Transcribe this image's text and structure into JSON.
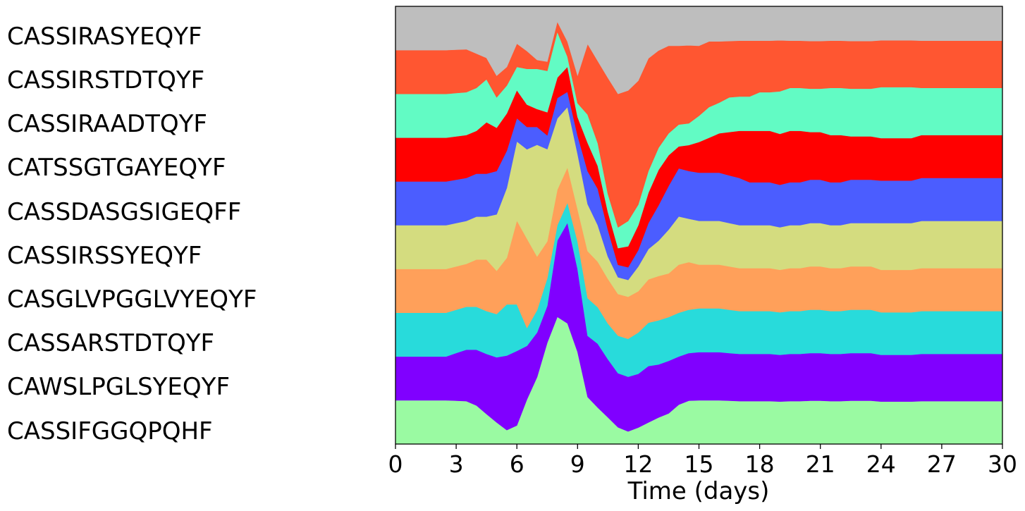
{
  "chart_data": {
    "type": "area",
    "stacked": true,
    "normalized": true,
    "xlabel": "Time (days)",
    "ylabel": "",
    "xlim": [
      0,
      30
    ],
    "xticks": [
      "0",
      "3",
      "6",
      "9",
      "12",
      "15",
      "18",
      "21",
      "24",
      "27",
      "30"
    ],
    "x": [
      0,
      0.5,
      1,
      1.5,
      2,
      2.5,
      3,
      3.5,
      4,
      4.5,
      5,
      5.5,
      6,
      6.5,
      7,
      7.5,
      8,
      8.5,
      9,
      9.5,
      10,
      10.5,
      11,
      11.5,
      12,
      12.5,
      13,
      13.5,
      14,
      14.5,
      15,
      15.5,
      16,
      16.5,
      17,
      17.5,
      18,
      18.5,
      19,
      19.5,
      20,
      20.5,
      21,
      21.5,
      22,
      22.5,
      23,
      23.5,
      24,
      24.5,
      25,
      25.5,
      26,
      26.5,
      27,
      27.5,
      28,
      28.5,
      29,
      29.5,
      30
    ],
    "series": [
      {
        "name": "CASSIFGGQPQHF",
        "color": "#9afaa2",
        "values": [
          0.1,
          0.1,
          0.1,
          0.1,
          0.1,
          0.1,
          0.1,
          0.1,
          0.09,
          0.07,
          0.05,
          0.03,
          0.04,
          0.1,
          0.15,
          0.22,
          0.25,
          0.24,
          0.2,
          0.1,
          0.08,
          0.06,
          0.04,
          0.03,
          0.04,
          0.05,
          0.06,
          0.07,
          0.09,
          0.1,
          0.1,
          0.1,
          0.1,
          0.1,
          0.1,
          0.1,
          0.1,
          0.1,
          0.1,
          0.1,
          0.1,
          0.1,
          0.1,
          0.1,
          0.1,
          0.1,
          0.1,
          0.1,
          0.1,
          0.1,
          0.1,
          0.1,
          0.1,
          0.1,
          0.1,
          0.1,
          0.1,
          0.1,
          0.1,
          0.1,
          0.1
        ]
      },
      {
        "name": "CAWSLPGLSYEQYF",
        "color": "#8000ff",
        "values": [
          0.1,
          0.1,
          0.1,
          0.1,
          0.1,
          0.1,
          0.11,
          0.12,
          0.13,
          0.14,
          0.15,
          0.16,
          0.16,
          0.12,
          0.1,
          0.08,
          0.15,
          0.2,
          0.18,
          0.13,
          0.14,
          0.13,
          0.13,
          0.13,
          0.13,
          0.13,
          0.12,
          0.12,
          0.11,
          0.11,
          0.11,
          0.11,
          0.11,
          0.11,
          0.11,
          0.11,
          0.11,
          0.11,
          0.11,
          0.11,
          0.11,
          0.11,
          0.11,
          0.11,
          0.11,
          0.11,
          0.11,
          0.11,
          0.11,
          0.11,
          0.11,
          0.11,
          0.11,
          0.11,
          0.11,
          0.11,
          0.11,
          0.11,
          0.11,
          0.11,
          0.11
        ]
      },
      {
        "name": "CASSARSTDTQYF",
        "color": "#28dbdb",
        "values": [
          0.1,
          0.1,
          0.1,
          0.1,
          0.1,
          0.1,
          0.1,
          0.1,
          0.1,
          0.1,
          0.1,
          0.11,
          0.1,
          0.04,
          0.05,
          0.06,
          0.03,
          0.04,
          0.06,
          0.08,
          0.08,
          0.08,
          0.09,
          0.09,
          0.1,
          0.1,
          0.1,
          0.1,
          0.1,
          0.1,
          0.1,
          0.1,
          0.1,
          0.1,
          0.1,
          0.1,
          0.1,
          0.1,
          0.1,
          0.1,
          0.1,
          0.1,
          0.1,
          0.1,
          0.1,
          0.1,
          0.1,
          0.1,
          0.1,
          0.1,
          0.1,
          0.1,
          0.1,
          0.1,
          0.1,
          0.1,
          0.1,
          0.1,
          0.1,
          0.1,
          0.1
        ]
      },
      {
        "name": "CASGLVPGGLVYEQYF",
        "color": "#ffa05a",
        "values": [
          0.1,
          0.1,
          0.1,
          0.1,
          0.1,
          0.1,
          0.1,
          0.1,
          0.11,
          0.12,
          0.1,
          0.1,
          0.18,
          0.2,
          0.12,
          0.08,
          0.07,
          0.07,
          0.07,
          0.1,
          0.1,
          0.1,
          0.1,
          0.1,
          0.1,
          0.1,
          0.1,
          0.1,
          0.11,
          0.11,
          0.1,
          0.1,
          0.1,
          0.1,
          0.1,
          0.1,
          0.1,
          0.1,
          0.1,
          0.1,
          0.1,
          0.1,
          0.1,
          0.1,
          0.1,
          0.1,
          0.1,
          0.1,
          0.1,
          0.1,
          0.1,
          0.1,
          0.1,
          0.1,
          0.1,
          0.1,
          0.1,
          0.1,
          0.1,
          0.1,
          0.1
        ]
      },
      {
        "name": "CASSIRSSYEQYF",
        "color": "#d4dc7f",
        "values": [
          0.1,
          0.1,
          0.1,
          0.1,
          0.1,
          0.1,
          0.1,
          0.1,
          0.1,
          0.1,
          0.13,
          0.15,
          0.17,
          0.2,
          0.25,
          0.2,
          0.14,
          0.12,
          0.12,
          0.1,
          0.08,
          0.05,
          0.04,
          0.04,
          0.06,
          0.07,
          0.08,
          0.1,
          0.11,
          0.1,
          0.1,
          0.1,
          0.1,
          0.1,
          0.1,
          0.1,
          0.1,
          0.1,
          0.1,
          0.1,
          0.1,
          0.1,
          0.1,
          0.1,
          0.1,
          0.1,
          0.1,
          0.1,
          0.11,
          0.11,
          0.11,
          0.11,
          0.11,
          0.11,
          0.11,
          0.11,
          0.11,
          0.11,
          0.11,
          0.11,
          0.11
        ]
      },
      {
        "name": "CASSDASGSIGEQFF",
        "color": "#4b5dff",
        "values": [
          0.1,
          0.1,
          0.1,
          0.1,
          0.1,
          0.1,
          0.1,
          0.1,
          0.1,
          0.1,
          0.1,
          0.08,
          0.05,
          0.05,
          0.04,
          0.03,
          0.04,
          0.03,
          0.04,
          0.07,
          0.08,
          0.06,
          0.03,
          0.03,
          0.04,
          0.06,
          0.08,
          0.1,
          0.11,
          0.11,
          0.11,
          0.11,
          0.11,
          0.11,
          0.11,
          0.1,
          0.1,
          0.1,
          0.1,
          0.1,
          0.1,
          0.1,
          0.1,
          0.1,
          0.1,
          0.1,
          0.1,
          0.1,
          0.1,
          0.1,
          0.1,
          0.1,
          0.1,
          0.1,
          0.1,
          0.1,
          0.1,
          0.1,
          0.1,
          0.1,
          0.1
        ]
      },
      {
        "name": "CATSSGTGAYEQYF",
        "color": "#ff0000",
        "values": [
          0.1,
          0.1,
          0.1,
          0.1,
          0.1,
          0.1,
          0.1,
          0.1,
          0.1,
          0.12,
          0.1,
          0.08,
          0.06,
          0.05,
          0.04,
          0.05,
          0.04,
          0.05,
          0.04,
          0.06,
          0.05,
          0.04,
          0.04,
          0.05,
          0.06,
          0.07,
          0.08,
          0.07,
          0.05,
          0.06,
          0.07,
          0.08,
          0.09,
          0.1,
          0.11,
          0.12,
          0.12,
          0.12,
          0.12,
          0.12,
          0.12,
          0.11,
          0.11,
          0.11,
          0.11,
          0.1,
          0.1,
          0.1,
          0.1,
          0.1,
          0.1,
          0.1,
          0.1,
          0.1,
          0.1,
          0.1,
          0.1,
          0.1,
          0.1,
          0.1,
          0.1
        ]
      },
      {
        "name": "CASSIRAADTQYF",
        "color": "#62fbc4",
        "values": [
          0.1,
          0.1,
          0.1,
          0.1,
          0.1,
          0.1,
          0.1,
          0.1,
          0.1,
          0.1,
          0.07,
          0.06,
          0.05,
          0.08,
          0.09,
          0.09,
          0.09,
          0.02,
          0.03,
          0.06,
          0.05,
          0.04,
          0.05,
          0.06,
          0.05,
          0.05,
          0.05,
          0.05,
          0.05,
          0.05,
          0.06,
          0.07,
          0.07,
          0.08,
          0.08,
          0.08,
          0.09,
          0.09,
          0.1,
          0.1,
          0.1,
          0.1,
          0.1,
          0.11,
          0.11,
          0.11,
          0.11,
          0.11,
          0.12,
          0.12,
          0.12,
          0.12,
          0.11,
          0.11,
          0.11,
          0.11,
          0.11,
          0.11,
          0.11,
          0.11,
          0.11
        ]
      },
      {
        "name": "CASSIRSTDTQYF",
        "color": "#ff5631",
        "values": [
          0.1,
          0.1,
          0.1,
          0.1,
          0.1,
          0.1,
          0.1,
          0.1,
          0.08,
          0.05,
          0.05,
          0.04,
          0.05,
          0.04,
          0.02,
          0.02,
          0.02,
          0.03,
          0.06,
          0.15,
          0.18,
          0.26,
          0.32,
          0.31,
          0.3,
          0.26,
          0.22,
          0.2,
          0.18,
          0.18,
          0.16,
          0.15,
          0.14,
          0.13,
          0.13,
          0.13,
          0.12,
          0.12,
          0.12,
          0.11,
          0.11,
          0.11,
          0.11,
          0.11,
          0.11,
          0.11,
          0.11,
          0.11,
          0.11,
          0.11,
          0.11,
          0.11,
          0.11,
          0.11,
          0.11,
          0.11,
          0.11,
          0.11,
          0.11,
          0.11,
          0.11
        ]
      },
      {
        "name": "CASSIRASYEQYF",
        "color": "#bebebe",
        "values": [
          0.1,
          0.1,
          0.1,
          0.1,
          0.1,
          0.1,
          0.1,
          0.1,
          0.11,
          0.12,
          0.16,
          0.13,
          0.08,
          0.1,
          0.12,
          0.12,
          0.03,
          0.07,
          0.15,
          0.08,
          0.12,
          0.16,
          0.21,
          0.2,
          0.18,
          0.12,
          0.1,
          0.09,
          0.09,
          0.09,
          0.09,
          0.08,
          0.08,
          0.08,
          0.08,
          0.08,
          0.08,
          0.08,
          0.08,
          0.08,
          0.08,
          0.08,
          0.08,
          0.08,
          0.08,
          0.08,
          0.08,
          0.08,
          0.08,
          0.08,
          0.08,
          0.08,
          0.08,
          0.08,
          0.08,
          0.08,
          0.08,
          0.08,
          0.08,
          0.08,
          0.08
        ]
      }
    ]
  },
  "legend": {
    "labels_top_to_bottom": [
      "CASSIRASYEQYF",
      "CASSIRSTDTQYF",
      "CASSIRAADTQYF",
      "CATSSGTGAYEQYF",
      "CASSDASGSIGEQFF",
      "CASSIRSSYEQYF",
      "CASGLVPGGLVYEQYF",
      "CASSARSTDTQYF",
      "CAWSLPGLSYEQYF",
      "CASSIFGGQPQHF"
    ]
  }
}
